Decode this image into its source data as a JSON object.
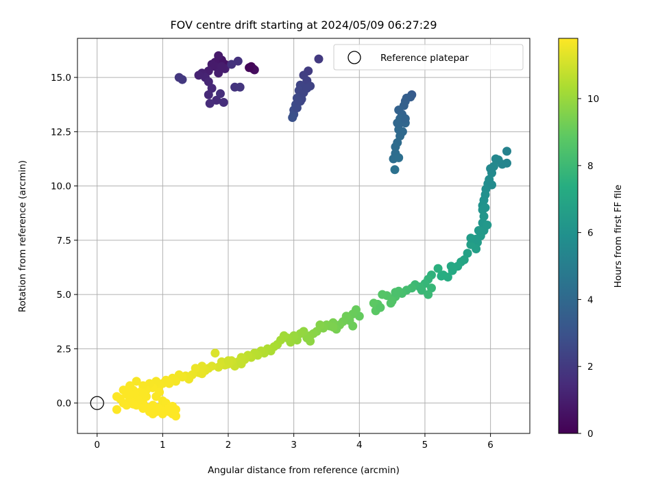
{
  "chart_data": {
    "type": "scatter",
    "title": "FOV centre drift starting at 2024/05/09 06:27:29",
    "xlabel": "Angular distance from reference (arcmin)",
    "ylabel": "Rotation from reference (arcmin)",
    "xlim": [
      -0.3,
      6.6
    ],
    "ylim": [
      -1.4,
      16.8
    ],
    "xticks": [
      "0",
      "1",
      "2",
      "3",
      "4",
      "5",
      "6"
    ],
    "yticks": [
      "0.0",
      "2.5",
      "5.0",
      "7.5",
      "10.0",
      "12.5",
      "15.0"
    ],
    "grid": true,
    "legend": {
      "placement": "top-right",
      "entries": [
        "Reference platepar"
      ]
    },
    "reference_point": {
      "x": 0.0,
      "y": 0.0,
      "label": "Reference platepar"
    },
    "colorbar": {
      "label": "Hours from first FF file",
      "range": [
        0,
        11.8
      ],
      "ticks": [
        "0",
        "2",
        "4",
        "6",
        "8",
        "10"
      ],
      "colormap": "viridis"
    },
    "series": [
      {
        "points": [
          [
            2.35,
            15.5
          ],
          [
            2.38,
            15.4
          ],
          [
            2.4,
            15.35
          ],
          [
            2.32,
            15.45
          ],
          [
            1.95,
            15.6
          ],
          [
            1.9,
            15.8
          ],
          [
            1.8,
            15.7
          ],
          [
            1.75,
            15.6
          ],
          [
            1.85,
            16.0
          ],
          [
            1.7,
            15.3
          ],
          [
            1.6,
            15.2
          ],
          [
            1.65,
            15.0
          ],
          [
            1.55,
            15.1
          ],
          [
            1.7,
            14.8
          ],
          [
            1.75,
            14.5
          ],
          [
            1.7,
            14.2
          ],
          [
            1.82,
            13.95
          ],
          [
            1.72,
            13.8
          ],
          [
            1.93,
            13.85
          ],
          [
            1.88,
            14.25
          ],
          [
            1.95,
            15.4
          ],
          [
            2.15,
            15.75
          ],
          [
            2.05,
            15.6
          ],
          [
            2.1,
            14.55
          ],
          [
            2.18,
            14.55
          ],
          [
            1.25,
            15.0
          ],
          [
            1.3,
            14.9
          ],
          [
            1.8,
            15.5
          ],
          [
            1.85,
            15.2
          ],
          [
            1.9,
            15.5
          ]
        ],
        "hours": [
          0.1,
          0.3,
          0.4,
          0.2,
          0.6,
          0.7,
          0.8,
          0.9,
          0.85,
          1.0,
          1.1,
          1.2,
          1.15,
          1.3,
          1.35,
          1.4,
          1.45,
          1.5,
          1.55,
          1.6,
          1.0,
          1.7,
          1.75,
          1.8,
          1.85,
          1.9,
          1.95,
          0.9,
          1.0,
          0.95
        ]
      },
      {
        "points": [
          [
            3.38,
            15.85
          ],
          [
            3.22,
            15.3
          ],
          [
            3.15,
            15.1
          ],
          [
            3.2,
            14.85
          ],
          [
            3.25,
            14.6
          ],
          [
            3.1,
            14.65
          ],
          [
            3.08,
            14.4
          ],
          [
            3.05,
            14.05
          ],
          [
            3.03,
            13.75
          ],
          [
            3.0,
            13.5
          ],
          [
            3.0,
            13.3
          ],
          [
            2.98,
            13.15
          ],
          [
            3.1,
            13.9
          ],
          [
            3.15,
            14.3
          ],
          [
            3.2,
            14.5
          ],
          [
            3.05,
            13.6
          ],
          [
            3.12,
            14.0
          ],
          [
            3.06,
            13.95
          ]
        ],
        "hours": [
          2.0,
          2.1,
          2.2,
          2.3,
          2.35,
          2.4,
          2.5,
          2.6,
          2.7,
          2.75,
          2.85,
          2.9,
          2.55,
          2.45,
          2.4,
          2.65,
          2.5,
          2.6
        ]
      },
      {
        "points": [
          [
            4.8,
            14.2
          ],
          [
            4.78,
            14.1
          ],
          [
            4.72,
            14.05
          ],
          [
            4.7,
            13.9
          ],
          [
            4.68,
            13.7
          ],
          [
            4.6,
            13.5
          ],
          [
            4.65,
            13.3
          ],
          [
            4.62,
            13.1
          ],
          [
            4.7,
            12.9
          ],
          [
            4.6,
            12.6
          ],
          [
            4.62,
            12.3
          ],
          [
            4.58,
            12.0
          ],
          [
            4.55,
            11.8
          ],
          [
            4.52,
            11.25
          ],
          [
            4.55,
            11.5
          ],
          [
            4.6,
            11.3
          ],
          [
            4.54,
            10.75
          ],
          [
            4.62,
            12.9
          ],
          [
            4.7,
            13.1
          ],
          [
            4.58,
            12.9
          ],
          [
            4.66,
            12.5
          ]
        ],
        "hours": [
          3.3,
          3.4,
          3.5,
          3.55,
          3.6,
          3.7,
          3.75,
          3.85,
          3.9,
          4.0,
          4.05,
          4.1,
          4.15,
          4.25,
          4.2,
          4.3,
          4.4,
          3.85,
          3.8,
          3.9,
          4.0
        ]
      },
      {
        "points": [
          [
            6.25,
            11.6
          ],
          [
            6.25,
            11.05
          ],
          [
            6.18,
            11.0
          ],
          [
            6.12,
            11.2
          ],
          [
            6.08,
            11.25
          ],
          [
            6.05,
            10.9
          ],
          [
            6.02,
            10.6
          ],
          [
            5.98,
            10.3
          ],
          [
            5.96,
            10.1
          ],
          [
            5.93,
            9.85
          ],
          [
            5.92,
            9.6
          ],
          [
            5.9,
            9.35
          ],
          [
            5.88,
            9.1
          ],
          [
            5.88,
            8.9
          ],
          [
            5.9,
            8.6
          ],
          [
            5.88,
            8.3
          ],
          [
            5.9,
            7.95
          ],
          [
            5.85,
            7.7
          ],
          [
            5.8,
            7.4
          ],
          [
            5.78,
            7.1
          ],
          [
            5.7,
            7.3
          ],
          [
            5.65,
            6.9
          ],
          [
            5.6,
            6.6
          ],
          [
            5.55,
            6.5
          ],
          [
            5.5,
            6.3
          ],
          [
            5.42,
            6.1
          ],
          [
            5.35,
            5.8
          ],
          [
            5.28,
            5.9
          ],
          [
            5.2,
            6.2
          ],
          [
            5.1,
            5.9
          ],
          [
            5.05,
            5.7
          ],
          [
            5.0,
            5.5
          ],
          [
            4.92,
            5.35
          ],
          [
            4.85,
            5.45
          ],
          [
            4.8,
            5.3
          ],
          [
            4.72,
            5.2
          ],
          [
            4.65,
            5.05
          ],
          [
            4.6,
            5.15
          ],
          [
            4.55,
            4.9
          ],
          [
            4.5,
            4.7
          ],
          [
            4.42,
            4.95
          ],
          [
            4.35,
            5.0
          ],
          [
            4.28,
            4.55
          ],
          [
            4.25,
            4.25
          ],
          [
            4.22,
            4.6
          ],
          [
            5.78,
            7.55
          ],
          [
            5.82,
            7.95
          ],
          [
            5.95,
            8.2
          ],
          [
            6.0,
            10.8
          ],
          [
            5.1,
            5.3
          ],
          [
            5.05,
            5.0
          ],
          [
            4.95,
            5.2
          ],
          [
            4.55,
            5.1
          ],
          [
            4.32,
            4.4
          ],
          [
            4.48,
            4.6
          ],
          [
            5.25,
            5.85
          ],
          [
            5.4,
            6.3
          ],
          [
            5.7,
            7.6
          ],
          [
            5.92,
            9.0
          ],
          [
            6.02,
            10.05
          ]
        ],
        "hours": [
          5.2,
          5.3,
          5.35,
          5.4,
          5.45,
          5.55,
          5.6,
          5.7,
          5.75,
          5.8,
          5.9,
          5.95,
          6.0,
          6.1,
          6.15,
          6.2,
          6.3,
          6.4,
          6.5,
          6.6,
          6.65,
          6.75,
          6.85,
          6.95,
          7.05,
          7.15,
          7.3,
          7.4,
          7.5,
          7.6,
          7.7,
          7.8,
          7.9,
          8.0,
          8.1,
          8.2,
          8.3,
          8.35,
          8.45,
          8.55,
          8.6,
          8.65,
          8.75,
          8.8,
          8.85,
          6.45,
          6.35,
          6.3,
          5.5,
          7.85,
          7.95,
          7.9,
          8.4,
          8.7,
          8.6,
          7.35,
          7.1,
          6.5,
          6.05,
          5.65
        ]
      },
      {
        "points": [
          [
            4.0,
            4.0
          ],
          [
            3.95,
            4.3
          ],
          [
            3.9,
            4.1
          ],
          [
            3.85,
            3.8
          ],
          [
            3.8,
            4.0
          ],
          [
            3.75,
            3.75
          ],
          [
            3.7,
            3.6
          ],
          [
            3.65,
            3.4
          ],
          [
            3.6,
            3.7
          ],
          [
            3.55,
            3.55
          ],
          [
            3.5,
            3.6
          ],
          [
            3.45,
            3.45
          ],
          [
            3.4,
            3.6
          ],
          [
            3.35,
            3.3
          ],
          [
            3.3,
            3.2
          ],
          [
            3.25,
            3.1
          ],
          [
            3.2,
            3.0
          ],
          [
            3.15,
            3.3
          ],
          [
            3.1,
            3.2
          ],
          [
            3.05,
            2.9
          ],
          [
            3.0,
            3.1
          ],
          [
            2.95,
            2.8
          ],
          [
            2.9,
            3.0
          ],
          [
            2.85,
            3.1
          ],
          [
            2.8,
            2.9
          ],
          [
            2.75,
            2.7
          ],
          [
            2.7,
            2.6
          ],
          [
            2.65,
            2.4
          ],
          [
            2.6,
            2.5
          ],
          [
            2.55,
            2.3
          ],
          [
            2.5,
            2.4
          ],
          [
            2.45,
            2.2
          ],
          [
            2.4,
            2.3
          ],
          [
            2.35,
            2.1
          ],
          [
            2.3,
            2.2
          ],
          [
            2.25,
            2.0
          ],
          [
            2.2,
            2.1
          ],
          [
            2.15,
            1.9
          ],
          [
            2.1,
            1.7
          ],
          [
            2.05,
            1.95
          ],
          [
            2.0,
            1.8
          ],
          [
            1.95,
            1.75
          ],
          [
            1.9,
            1.9
          ],
          [
            1.85,
            1.65
          ],
          [
            1.8,
            2.3
          ],
          [
            1.75,
            1.7
          ],
          [
            1.7,
            1.6
          ],
          [
            1.65,
            1.5
          ],
          [
            1.6,
            1.7
          ],
          [
            1.55,
            1.4
          ],
          [
            1.5,
            1.6
          ],
          [
            1.45,
            1.3
          ],
          [
            1.4,
            1.1
          ],
          [
            1.35,
            1.25
          ],
          [
            1.3,
            1.2
          ],
          [
            1.25,
            1.3
          ],
          [
            1.2,
            1.0
          ],
          [
            1.15,
            1.15
          ],
          [
            1.1,
            0.9
          ],
          [
            1.05,
            1.05
          ],
          [
            3.25,
            2.85
          ],
          [
            3.6,
            3.5
          ],
          [
            3.9,
            3.55
          ],
          [
            2.2,
            1.8
          ],
          [
            2.0,
            1.95
          ],
          [
            1.6,
            1.35
          ]
        ],
        "hours": [
          9.0,
          9.05,
          9.1,
          9.15,
          9.2,
          9.25,
          9.3,
          9.35,
          9.4,
          9.45,
          9.5,
          9.55,
          9.6,
          9.65,
          9.7,
          9.75,
          9.8,
          9.85,
          9.9,
          9.95,
          10.0,
          10.05,
          10.1,
          10.15,
          10.2,
          10.25,
          10.3,
          10.35,
          10.4,
          10.45,
          10.5,
          10.55,
          10.6,
          10.65,
          10.7,
          10.75,
          10.8,
          10.85,
          10.9,
          10.95,
          11.0,
          11.05,
          11.1,
          11.15,
          11.2,
          11.25,
          11.3,
          11.35,
          11.4,
          11.45,
          11.5,
          11.5,
          11.55,
          11.55,
          11.6,
          11.6,
          11.65,
          11.65,
          11.7,
          11.7,
          9.8,
          9.45,
          9.15,
          10.8,
          11.0,
          11.45
        ]
      },
      {
        "points": [
          [
            1.0,
            0.9
          ],
          [
            0.95,
            0.8
          ],
          [
            0.9,
            1.0
          ],
          [
            0.85,
            0.7
          ],
          [
            0.8,
            0.9
          ],
          [
            0.75,
            0.6
          ],
          [
            0.7,
            0.8
          ],
          [
            0.65,
            0.5
          ],
          [
            0.6,
            1.0
          ],
          [
            0.55,
            0.6
          ],
          [
            0.5,
            0.8
          ],
          [
            0.45,
            0.4
          ],
          [
            0.4,
            0.6
          ],
          [
            0.35,
            0.2
          ],
          [
            0.3,
            0.3
          ],
          [
            0.3,
            -0.3
          ],
          [
            0.4,
            0.0
          ],
          [
            0.45,
            -0.1
          ],
          [
            0.5,
            0.2
          ],
          [
            0.55,
            0.1
          ],
          [
            0.6,
            -0.1
          ],
          [
            0.65,
            0.3
          ],
          [
            0.7,
            0.0
          ],
          [
            0.75,
            -0.2
          ],
          [
            0.8,
            -0.3
          ],
          [
            0.85,
            -0.1
          ],
          [
            0.9,
            -0.4
          ],
          [
            0.95,
            -0.2
          ],
          [
            1.0,
            -0.5
          ],
          [
            1.05,
            -0.3
          ],
          [
            1.1,
            -0.4
          ],
          [
            1.15,
            -0.5
          ],
          [
            1.2,
            -0.6
          ],
          [
            1.2,
            -0.3
          ],
          [
            1.0,
            0.1
          ],
          [
            1.05,
            0.0
          ],
          [
            0.7,
            -0.25
          ],
          [
            0.8,
            -0.4
          ],
          [
            0.6,
            0.4
          ],
          [
            0.5,
            0.4
          ],
          [
            0.65,
            0.15
          ],
          [
            0.75,
            0.3
          ],
          [
            0.85,
            -0.5
          ],
          [
            1.1,
            -0.2
          ],
          [
            1.15,
            -0.15
          ],
          [
            0.9,
            0.3
          ],
          [
            0.55,
            -0.05
          ],
          [
            0.45,
            0.6
          ],
          [
            0.7,
            0.45
          ],
          [
            0.95,
            0.5
          ]
        ],
        "hours": [
          11.7,
          11.72,
          11.7,
          11.75,
          11.72,
          11.75,
          11.73,
          11.78,
          11.7,
          11.76,
          11.74,
          11.8,
          11.78,
          11.8,
          11.8,
          11.8,
          11.8,
          11.8,
          11.79,
          11.8,
          11.8,
          11.78,
          11.8,
          11.8,
          11.8,
          11.8,
          11.8,
          11.8,
          11.8,
          11.8,
          11.8,
          11.8,
          11.8,
          11.8,
          11.75,
          11.77,
          11.8,
          11.8,
          11.78,
          11.78,
          11.79,
          11.77,
          11.8,
          11.8,
          11.8,
          11.76,
          11.8,
          11.78,
          11.77,
          11.74
        ]
      }
    ]
  }
}
